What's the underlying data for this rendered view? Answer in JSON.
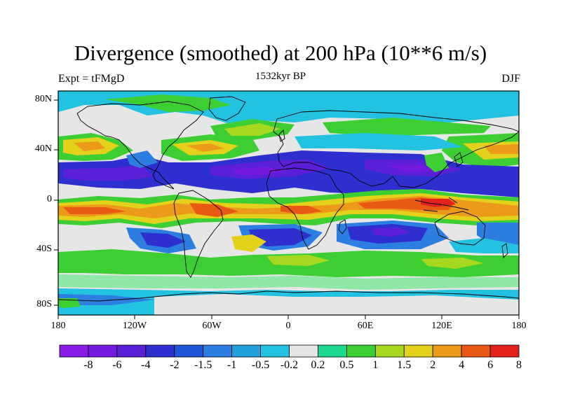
{
  "title": "Divergence (smoothed) at 200 hPa (10**6 m/s)",
  "left_subtitle": "Expt = tFMgD",
  "center_subtitle": "1532kyr BP",
  "right_subtitle": "DJF",
  "lat_ticks": [
    "80N",
    "40N",
    "0",
    "40S",
    "80S"
  ],
  "lon_ticks": [
    "180",
    "120W",
    "60W",
    "0",
    "60E",
    "120E",
    "180"
  ],
  "colorbar": {
    "labels": [
      "-8",
      "-6",
      "-4",
      "-2",
      "-1.5",
      "-1",
      "-0.5",
      "-0.2",
      "0.2",
      "0.5",
      "1",
      "1.5",
      "2",
      "4",
      "6",
      "8"
    ],
    "colors": [
      "#8a1ce8",
      "#7419e0",
      "#5a1fd6",
      "#2f2fcf",
      "#1f55d6",
      "#2c7fe0",
      "#22a0dd",
      "#22c2e0",
      "#e6e6e6",
      "#1fd890",
      "#3dce33",
      "#a6d81f",
      "#e3d11c",
      "#ec9a19",
      "#e85a14",
      "#e3231b"
    ]
  },
  "colors": {
    "neutral": "#e6e6e6",
    "pale_green": "#8fe7a8",
    "light_blue": "#22c2e0",
    "mid_blue": "#2c7fe0",
    "blue": "#2f2fcf",
    "deep_blue": "#5a1fd6",
    "violet": "#7419e0",
    "green": "#3dce33",
    "lime": "#a6d81f",
    "yellow": "#e3d11c",
    "orange": "#ec9a19",
    "red_orange": "#e85a14",
    "red": "#e3231b"
  }
}
